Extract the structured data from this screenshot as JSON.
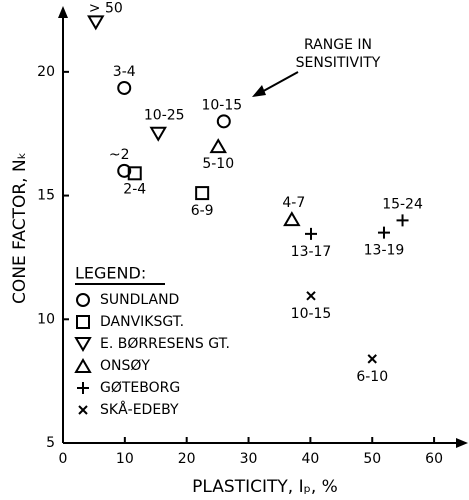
{
  "chart_data": {
    "type": "scatter",
    "x_label": "PLASTICITY, Iₚ, %",
    "y_label": "CONE FACTOR, Nₖ",
    "annotation": [
      "RANGE IN",
      "SENSITIVITY"
    ],
    "legend_title": "LEGEND:",
    "xlim": [
      0,
      65
    ],
    "ylim": [
      5,
      22.5
    ],
    "xticks": [
      0,
      10,
      20,
      30,
      40,
      50,
      60
    ],
    "yticks": [
      5,
      10,
      15,
      20
    ],
    "series": [
      {
        "name": "SUNDLAND",
        "marker": "circle",
        "color": "#000000",
        "x": [
          9.9,
          9.9,
          26.0
        ],
        "values": [
          19.35,
          16.0,
          18.0
        ],
        "point_labels": [
          "3-4",
          "~2",
          "10-15"
        ]
      },
      {
        "name": "DANVIKSGT.",
        "marker": "square",
        "color": "#000000",
        "x": [
          11.6,
          22.5
        ],
        "values": [
          15.9,
          15.1
        ],
        "point_labels": [
          "2-4",
          "6-9"
        ]
      },
      {
        "name": "E. BØRRESENS GT.",
        "marker": "triangle-down",
        "color": "#000000",
        "x": [
          5.3,
          15.4
        ],
        "values": [
          22.0,
          17.5
        ],
        "point_labels": [
          "> 50",
          "10-25"
        ]
      },
      {
        "name": "ONSØY",
        "marker": "triangle-up",
        "color": "#000000",
        "x": [
          25.1,
          37.0
        ],
        "values": [
          17.0,
          14.05
        ],
        "point_labels": [
          "5-10",
          "4-7"
        ]
      },
      {
        "name": "GØTEBORG",
        "marker": "plus",
        "color": "#000000",
        "x": [
          40.1,
          51.9,
          54.9
        ],
        "values": [
          13.45,
          13.5,
          14.0
        ],
        "point_labels": [
          "13-17",
          "13-19",
          "15-24"
        ]
      },
      {
        "name": "SKÅ-EDEBY",
        "marker": "cross",
        "color": "#000000",
        "x": [
          40.1,
          50.0
        ],
        "values": [
          10.95,
          8.4
        ],
        "point_labels": [
          "10-15",
          "6-10"
        ]
      }
    ]
  }
}
